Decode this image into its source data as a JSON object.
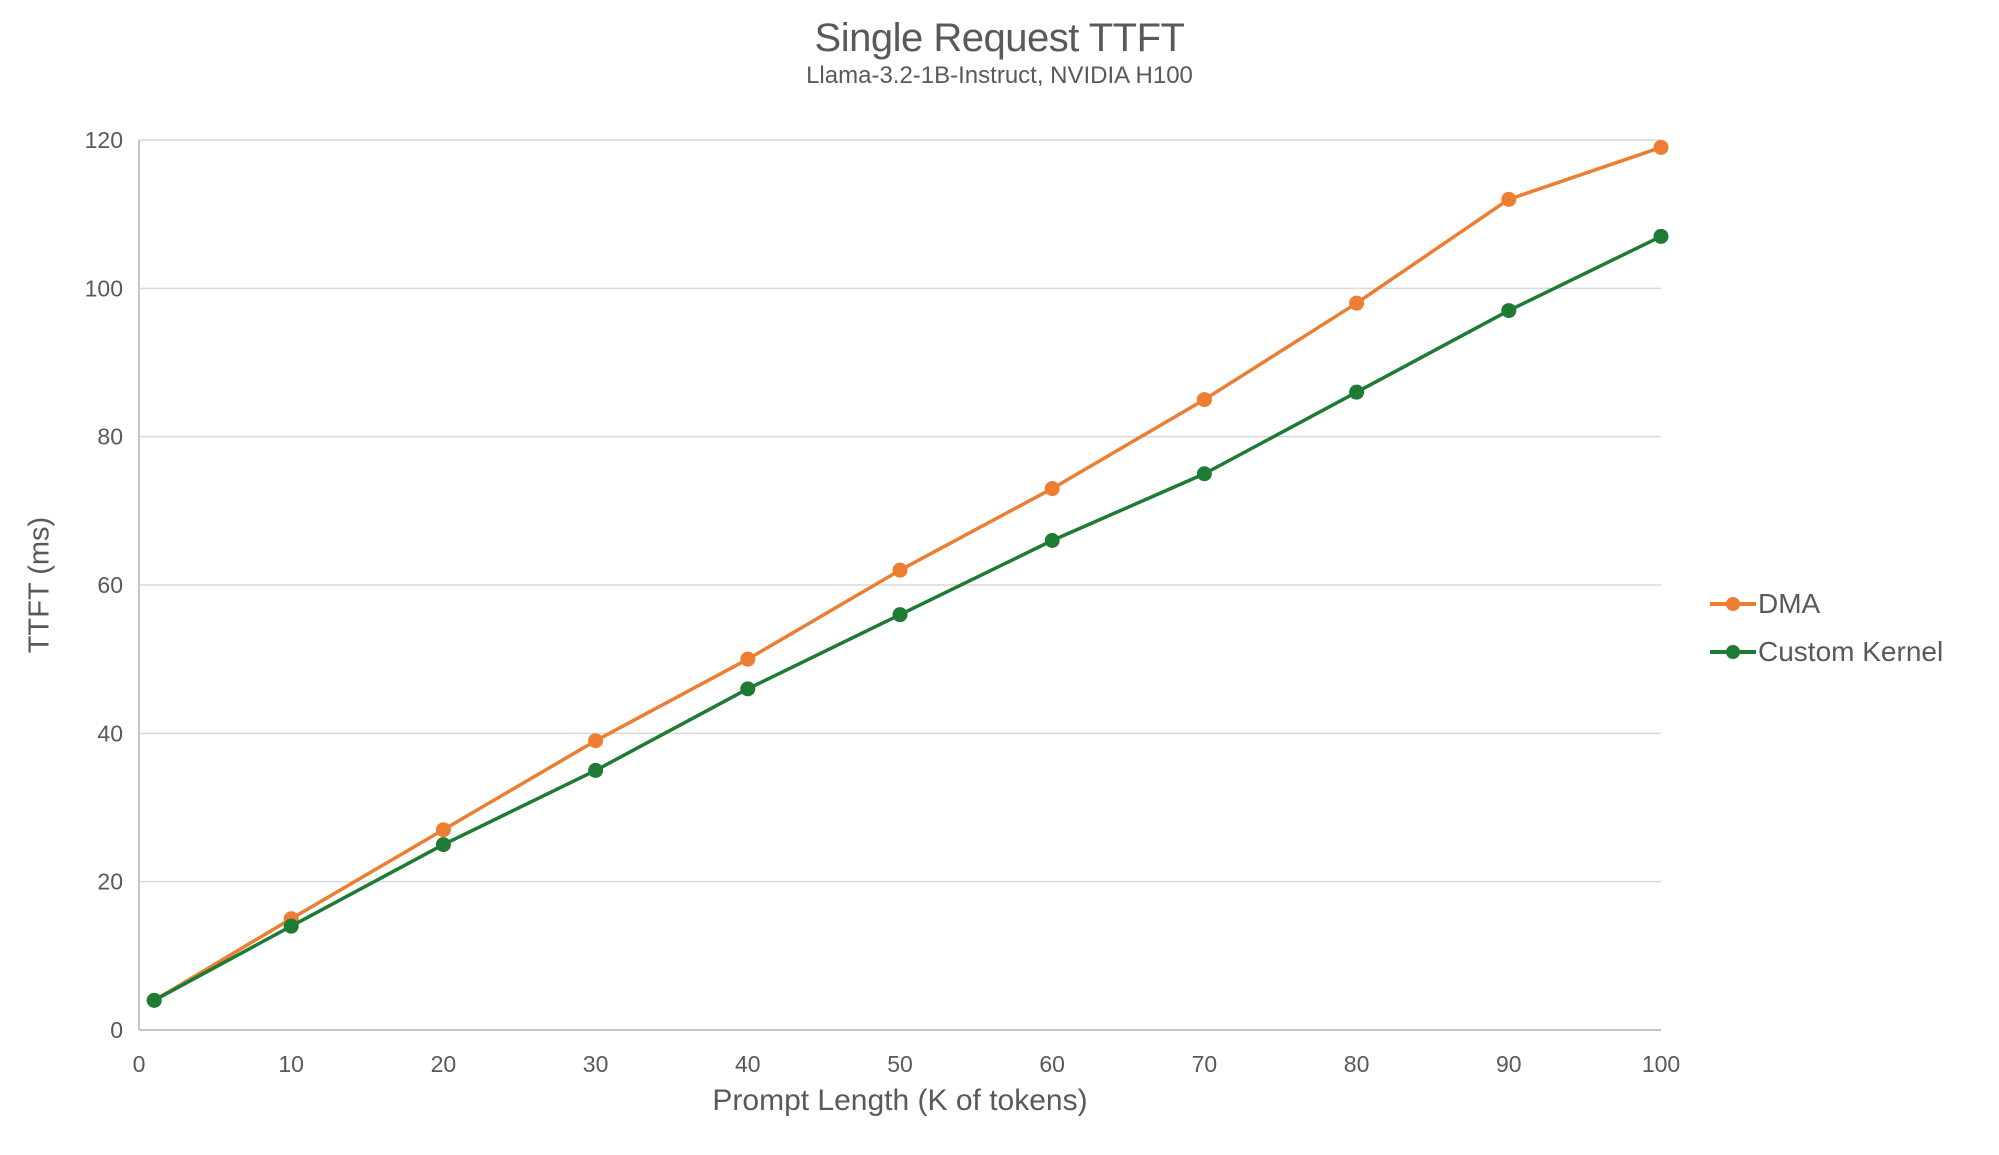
{
  "title": "Single Request TTFT",
  "subtitle": "Llama-3.2-1B-Instruct, NVIDIA H100",
  "chart_data": {
    "type": "line",
    "title": "Single Request TTFT",
    "subtitle": "Llama-3.2-1B-Instruct, NVIDIA H100",
    "xlabel": "Prompt Length (K of tokens)",
    "ylabel": "TTFT (ms)",
    "x": [
      1,
      10,
      20,
      30,
      40,
      50,
      60,
      70,
      80,
      90,
      100
    ],
    "series": [
      {
        "name": "DMA",
        "color": "#ED7D31",
        "values": [
          4,
          15,
          27,
          39,
          50,
          62,
          73,
          85,
          98,
          112,
          119
        ]
      },
      {
        "name": "Custom Kernel",
        "color": "#1E7B34",
        "values": [
          4,
          14,
          25,
          35,
          46,
          56,
          66,
          75,
          86,
          97,
          107
        ]
      }
    ],
    "xlim": [
      0,
      100
    ],
    "ylim": [
      0,
      120
    ],
    "x_ticks": [
      0,
      10,
      20,
      30,
      40,
      50,
      60,
      70,
      80,
      90,
      100
    ],
    "y_ticks": [
      0,
      20,
      40,
      60,
      80,
      100,
      120
    ],
    "grid": "horizontal",
    "legend_position": "right",
    "marker": "circle"
  },
  "style": {
    "text_color": "#595959",
    "gridline_color": "#D9D9D9",
    "axis_color": "#C6C6C6"
  }
}
